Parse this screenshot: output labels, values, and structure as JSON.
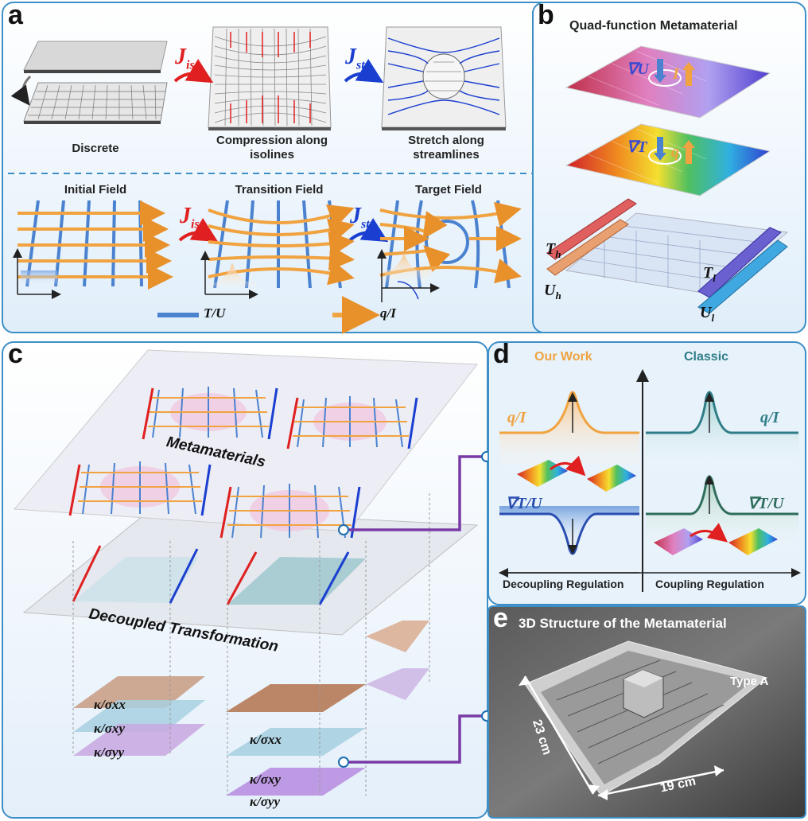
{
  "panels": {
    "a": {
      "label": "a",
      "captions": {
        "discrete": "Discrete",
        "compression": "Compression along isolines",
        "stretch": "Stretch along streamlines",
        "initial": "Initial Field",
        "transition": "Transition Field",
        "target": "Target Field"
      },
      "j_iso": "J",
      "j_iso_sub": "iso",
      "j_str": "J",
      "j_str_sub": "str",
      "legend_tu": "T/U",
      "legend_qi": "q/I"
    },
    "b": {
      "label": "b",
      "title": "Quad-function Metamaterial",
      "grad_u": "∇U",
      "current": "I",
      "grad_t": "∇T",
      "heat": "q",
      "th": "T",
      "th_sub": "h",
      "uh": "U",
      "uh_sub": "h",
      "tl": "T",
      "tl_sub": "l",
      "ul": "U",
      "ul_sub": "l"
    },
    "c": {
      "label": "c",
      "metamaterials": "Metamaterials",
      "decoupled": "Decoupled Transformation",
      "kxx": "κ/σxx",
      "kxy": "κ/σxy",
      "kyy": "κ/σyy"
    },
    "d": {
      "label": "d",
      "our_work": "Our Work",
      "classic": "Classic",
      "qi_left": "q/I",
      "qi_right": "q/I",
      "grad_left": "∇T/U",
      "grad_right": "∇T/U",
      "decoupling": "Decoupling Regulation",
      "coupling": "Coupling Regulation"
    },
    "e": {
      "label": "e",
      "title": "3D Structure of the Metamaterial",
      "type": "Type A",
      "dim_h": "23 cm",
      "dim_w": "19 cm"
    }
  },
  "colors": {
    "frame": "#3d8fc6",
    "panel_bg": "#e7f2fb",
    "orange": "#f0a340",
    "blue_line": "#4a82d0",
    "red_arrow": "#e02020",
    "blue_arrow": "#1a3fd0",
    "teal": "#2f7d87",
    "purple": "#7a3aa6"
  }
}
